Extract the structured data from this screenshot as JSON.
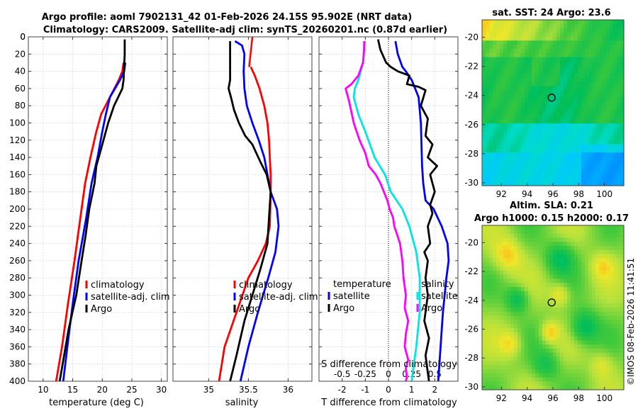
{
  "header": {
    "title_line1": "Argo profile: aoml 7902131_42 01-Feb-2026 24.15S 95.902E (NRT data)",
    "title_line2": "Climatology: CARS2009. Satellite-adj clim: synTS_20260201.nc (0.87d earlier)"
  },
  "credit": "©IMOS 08-Feb-2026 11:41:51",
  "colors": {
    "climatology": "#ff0000",
    "satellite": "#0000ff",
    "argo": "#000000",
    "sat_diff": "#00e5e5",
    "sal_diff": "#ff00ff"
  },
  "chart_data": [
    {
      "type": "line",
      "id": "temperature",
      "xlabel": "temperature (deg C)",
      "ylabel": "",
      "xlim": [
        7.5,
        31
      ],
      "ylim": [
        0,
        400
      ],
      "y_reversed": true,
      "xticks": [
        10,
        15,
        20,
        25,
        30
      ],
      "yticks": [
        0,
        20,
        40,
        60,
        80,
        100,
        120,
        140,
        160,
        180,
        200,
        220,
        240,
        260,
        280,
        300,
        320,
        340,
        360,
        380,
        400
      ],
      "legend": [
        "climatology",
        "satellite-adj. clim",
        "Argo"
      ],
      "series": [
        {
          "name": "climatology",
          "color": "#ff0000",
          "x": [
            23.6,
            23.4,
            22.8,
            21.3,
            19.8,
            19.0,
            18.0,
            17.1,
            16.3,
            15.3,
            14.2,
            13.2,
            12.2
          ],
          "y": [
            30,
            40,
            50,
            70,
            90,
            110,
            140,
            170,
            210,
            260,
            310,
            360,
            400
          ]
        },
        {
          "name": "satellite-adj. clim",
          "color": "#0000ff",
          "x": [
            23.9,
            23.7,
            23.0,
            21.3,
            20.6,
            20.0,
            19.2,
            18.2,
            17.3,
            16.0,
            15.0,
            14.1,
            13.4
          ],
          "y": [
            30,
            40,
            50,
            70,
            90,
            110,
            140,
            170,
            210,
            260,
            310,
            360,
            400
          ]
        },
        {
          "name": "Argo",
          "color": "#000000",
          "x": [
            23.8,
            23.8,
            23.7,
            23.6,
            23.4,
            22.0,
            21.0,
            20.0,
            19.0,
            18.7,
            17.8,
            17.2,
            16.5,
            15.6,
            14.3,
            13.3,
            12.8
          ],
          "y": [
            3,
            20,
            35,
            50,
            60,
            80,
            100,
            125,
            150,
            170,
            200,
            230,
            260,
            300,
            340,
            380,
            400
          ]
        }
      ]
    },
    {
      "type": "line",
      "id": "salinity",
      "xlabel": "salinity",
      "xlim": [
        34.55,
        36.3
      ],
      "ylim": [
        0,
        400
      ],
      "y_reversed": true,
      "xticks": [
        35,
        35.5,
        36
      ],
      "legend": [
        "climatology",
        "satellite-adj. clim",
        "Argo"
      ],
      "series": [
        {
          "name": "climatology",
          "color": "#ff0000",
          "x": [
            35.53,
            35.58,
            35.64,
            35.7,
            35.74,
            35.76,
            35.77,
            35.78,
            35.78,
            35.77,
            35.72,
            35.62,
            35.5,
            35.35,
            35.2,
            35.13
          ],
          "y": [
            35,
            45,
            60,
            80,
            100,
            120,
            140,
            160,
            180,
            220,
            240,
            260,
            280,
            320,
            360,
            400
          ],
          "yfill": [
            [
              35.55,
              35.51
            ],
            [
              0,
              35
            ]
          ]
        },
        {
          "name": "satellite-adj. clim",
          "color": "#0000ff",
          "x": [
            35.33,
            35.42,
            35.45,
            35.44,
            35.45,
            35.48,
            35.55,
            35.63,
            35.7,
            35.74,
            35.78,
            35.86,
            35.88,
            35.84,
            35.75,
            35.62,
            35.5,
            35.4
          ],
          "y": [
            5,
            10,
            20,
            40,
            60,
            80,
            100,
            120,
            140,
            160,
            180,
            200,
            220,
            250,
            280,
            320,
            360,
            400
          ]
        },
        {
          "name": "Argo",
          "color": "#000000",
          "x": [
            35.27,
            35.27,
            35.27,
            35.25,
            35.28,
            35.32,
            35.38,
            35.46,
            35.55,
            35.65,
            35.73,
            35.78,
            35.76,
            35.74,
            35.65,
            35.55,
            35.45,
            35.35,
            35.27
          ],
          "y": [
            5,
            30,
            50,
            60,
            70,
            85,
            100,
            115,
            125,
            145,
            160,
            180,
            210,
            240,
            270,
            300,
            330,
            370,
            400
          ]
        }
      ]
    },
    {
      "type": "line",
      "id": "differences",
      "xlabel": "T difference from climatology",
      "xlabel_top": "S difference from climatology",
      "xlim": [
        -3,
        3
      ],
      "ylim": [
        0,
        400
      ],
      "y_reversed": true,
      "xticks": [
        -2,
        -1,
        0,
        1,
        2
      ],
      "xticks_top_labels": [
        "-0.5",
        "-0.25",
        "0",
        "0.25",
        "0.5"
      ],
      "legend_title_left": "temperature",
      "legend_title_right": "salinity",
      "legend_left": [
        "satellite",
        "Argo"
      ],
      "legend_right": [
        "satellite",
        "Argo"
      ],
      "series": [
        {
          "name": "T satellite",
          "color": "#0000ff",
          "x": [
            0.3,
            0.4,
            0.6,
            0.75,
            1.0,
            1.3,
            1.4,
            1.42,
            1.45,
            1.5,
            1.6,
            1.95,
            2.3,
            2.55,
            2.6,
            2.5,
            2.35,
            2.25,
            2.15
          ],
          "y": [
            5,
            20,
            35,
            40,
            50,
            70,
            100,
            120,
            150,
            170,
            190,
            200,
            220,
            240,
            260,
            280,
            320,
            360,
            400
          ]
        },
        {
          "name": "T Argo",
          "color": "#000000",
          "x": [
            -0.45,
            -0.35,
            -0.1,
            0.1,
            0.4,
            0.9,
            0.8,
            1.3,
            1.6,
            1.4,
            1.7,
            1.6,
            1.9,
            1.7,
            2.1,
            1.8,
            2.0,
            1.8,
            1.9,
            1.7,
            1.8,
            1.55,
            1.7,
            1.6,
            1.7,
            1.55,
            1.75,
            1.6,
            1.7,
            1.75
          ],
          "y": [
            3,
            15,
            30,
            35,
            40,
            45,
            55,
            58,
            62,
            80,
            95,
            115,
            125,
            140,
            150,
            160,
            180,
            195,
            205,
            220,
            240,
            250,
            260,
            280,
            300,
            330,
            350,
            370,
            390,
            400
          ]
        },
        {
          "name": "S satellite",
          "color": "#00e5e5",
          "x": [
            -1.0,
            -1.05,
            -1.1,
            -1.3,
            -1.45,
            -1.5,
            -1.3,
            -1.0,
            -0.6,
            -0.15,
            0.1,
            0.6,
            0.9,
            1.2,
            1.35,
            1.35,
            1.2,
            1.1,
            1.0
          ],
          "y": [
            5,
            10,
            30,
            50,
            60,
            70,
            90,
            110,
            140,
            160,
            180,
            200,
            220,
            250,
            280,
            320,
            360,
            380,
            400
          ]
        },
        {
          "name": "S Argo",
          "color": "#ff00ff",
          "x": [
            -1.05,
            -1.05,
            -1.1,
            -1.3,
            -1.6,
            -1.85,
            -1.7,
            -1.5,
            -1.25,
            -1.0,
            -0.85,
            -0.55,
            -0.35,
            -0.2,
            -0.05,
            0.05,
            0.2,
            0.25,
            0.5,
            0.6,
            0.65,
            0.75,
            0.7,
            0.85,
            0.75,
            0.7,
            0.85,
            0.75,
            0.8,
            0.75
          ],
          "y": [
            5,
            15,
            30,
            45,
            55,
            60,
            75,
            100,
            120,
            135,
            150,
            160,
            170,
            180,
            190,
            200,
            210,
            220,
            240,
            260,
            280,
            300,
            315,
            330,
            345,
            360,
            375,
            385,
            395,
            400
          ]
        }
      ]
    },
    {
      "type": "heatmap",
      "id": "sst_map",
      "title": "sat. SST: 24  Argo: 23.6",
      "xlim": [
        90.5,
        101.5
      ],
      "ylim": [
        -30.2,
        -18.8
      ],
      "xticks": [
        92,
        94,
        96,
        98,
        100
      ],
      "yticks": [
        -20,
        -22,
        -24,
        -26,
        -28,
        -30
      ],
      "marker": {
        "lon": 95.902,
        "lat": -24.15
      }
    },
    {
      "type": "heatmap",
      "id": "sla_map",
      "title_line1": "Altim. SLA: 0.21",
      "title_line2": "Argo h1000: 0.15 h2000: 0.17",
      "xlim": [
        90.5,
        101.5
      ],
      "ylim": [
        -30.2,
        -18.8
      ],
      "xticks": [
        92,
        94,
        96,
        98,
        100
      ],
      "yticks": [
        -20,
        -22,
        -24,
        -26,
        -28,
        -30
      ],
      "marker": {
        "lon": 95.902,
        "lat": -24.15
      }
    }
  ]
}
